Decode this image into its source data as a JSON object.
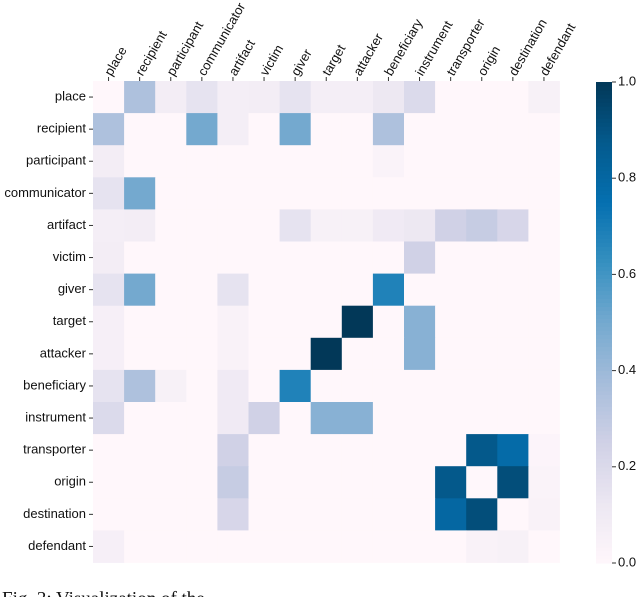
{
  "chart_data": {
    "type": "heatmap",
    "xcategories": [
      "place",
      "recipient",
      "participant",
      "communicator",
      "artifact",
      "victim",
      "giver",
      "target",
      "attacker",
      "beneficiary",
      "instrument",
      "transporter",
      "origin",
      "destination",
      "defendant"
    ],
    "ycategories": [
      "place",
      "recipient",
      "participant",
      "communicator",
      "artifact",
      "victim",
      "giver",
      "target",
      "attacker",
      "beneficiary",
      "instrument",
      "transporter",
      "origin",
      "destination",
      "defendant"
    ],
    "values": [
      [
        0,
        0.35,
        0.08,
        0.15,
        0.07,
        0.08,
        0.15,
        0.07,
        0.07,
        0.12,
        0.2,
        0,
        0,
        0,
        0.05
      ],
      [
        0.35,
        0,
        0,
        0.5,
        0.07,
        0,
        0.5,
        0,
        0,
        0.35,
        0,
        0,
        0,
        0,
        0
      ],
      [
        0.08,
        0,
        0,
        0,
        0,
        0,
        0,
        0,
        0,
        0.03,
        0,
        0,
        0,
        0,
        0
      ],
      [
        0.15,
        0.5,
        0,
        0,
        0,
        0,
        0,
        0,
        0,
        0,
        0,
        0,
        0,
        0,
        0
      ],
      [
        0.07,
        0.08,
        0,
        0,
        0,
        0,
        0.15,
        0.05,
        0.05,
        0.1,
        0.12,
        0.25,
        0.28,
        0.22,
        0
      ],
      [
        0.08,
        0,
        0,
        0,
        0,
        0,
        0,
        0,
        0,
        0,
        0.25,
        0,
        0,
        0,
        0
      ],
      [
        0.15,
        0.5,
        0,
        0,
        0.15,
        0,
        0,
        0,
        0,
        0.68,
        0,
        0,
        0,
        0,
        0
      ],
      [
        0.06,
        0,
        0,
        0,
        0.04,
        0,
        0,
        0,
        1.0,
        0,
        0.45,
        0,
        0,
        0,
        0
      ],
      [
        0.06,
        0,
        0,
        0,
        0.04,
        0,
        0,
        1.0,
        0,
        0,
        0.45,
        0,
        0,
        0,
        0
      ],
      [
        0.15,
        0.35,
        0.05,
        0,
        0.1,
        0,
        0.68,
        0,
        0,
        0,
        0,
        0,
        0,
        0,
        0
      ],
      [
        0.2,
        0,
        0,
        0,
        0.1,
        0.25,
        0,
        0.45,
        0.45,
        0,
        0,
        0,
        0,
        0,
        0
      ],
      [
        0,
        0,
        0,
        0,
        0.25,
        0,
        0,
        0,
        0,
        0,
        0,
        0,
        0.88,
        0.78,
        0.02
      ],
      [
        0,
        0,
        0,
        0,
        0.28,
        0,
        0,
        0,
        0,
        0,
        0,
        0.88,
        0,
        0.92,
        0.03
      ],
      [
        0,
        0,
        0,
        0,
        0.22,
        0,
        0,
        0,
        0,
        0,
        0,
        0.8,
        0.92,
        0,
        0.04
      ],
      [
        0.06,
        0,
        0,
        0,
        0,
        0,
        0,
        0,
        0,
        0,
        0,
        0,
        0.04,
        0.05,
        0
      ]
    ],
    "colormap": [
      "#fff7fb",
      "#ece7f2",
      "#d0d1e6",
      "#a6bddb",
      "#74a9cf",
      "#3690c0",
      "#0570b0",
      "#045a8d",
      "#023858"
    ],
    "clim": [
      0,
      1
    ],
    "cticks": [
      {
        "value": 0,
        "label": "0.0"
      },
      {
        "value": 0.2,
        "label": "0.2"
      },
      {
        "value": 0.4,
        "label": "0.4"
      },
      {
        "value": 0.6,
        "label": "0.6"
      },
      {
        "value": 0.8,
        "label": "0.8"
      },
      {
        "value": 1,
        "label": "1.0"
      }
    ],
    "caption": "Fig. 3: Visualization of the"
  }
}
